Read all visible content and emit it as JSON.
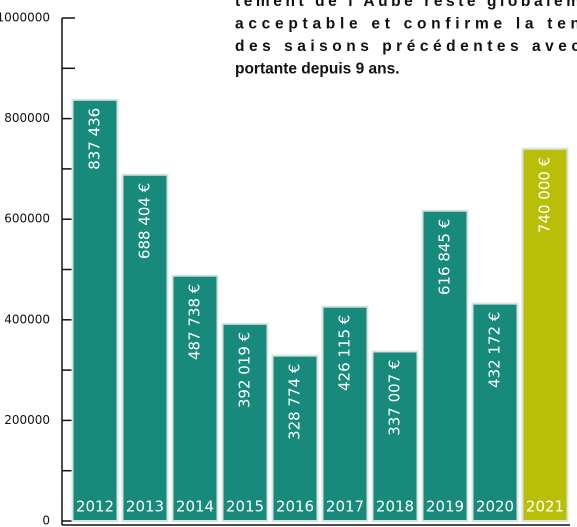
{
  "chart_data": {
    "type": "bar",
    "annotation": [
      "tement de l'Aube reste globalem",
      "acceptable et confirme la ten",
      "des saisons précédentes avec",
      "portante depuis 9 ans."
    ],
    "categories": [
      "2012",
      "2013",
      "2014",
      "2015",
      "2016",
      "2017",
      "2018",
      "2019",
      "2020",
      "2021"
    ],
    "values": [
      837436,
      688404,
      487738,
      392019,
      328774,
      426115,
      337007,
      616845,
      432172,
      740000
    ],
    "value_labels": [
      "837 436",
      "688 404 €",
      "487 738 €",
      "392 019 €",
      "328 774 €",
      "426 115 €",
      "337 007 €",
      "616 845 €",
      "432 172 €",
      "740 000 €"
    ],
    "colors": [
      "#178a7b",
      "#178a7b",
      "#178a7b",
      "#178a7b",
      "#178a7b",
      "#178a7b",
      "#178a7b",
      "#178a7b",
      "#178a7b",
      "#b9bf08"
    ],
    "ylim": [
      0,
      1000000
    ],
    "yticks": [
      0,
      200000,
      400000,
      600000,
      800000,
      1000000
    ],
    "minor_yticks": [
      100000,
      300000,
      500000,
      700000,
      900000
    ]
  }
}
